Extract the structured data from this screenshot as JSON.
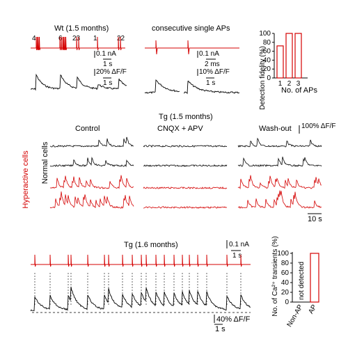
{
  "colors": {
    "ephys": "#d40000",
    "normal_trace": "#000000",
    "hyperactive": "#d40000",
    "axis": "#000000"
  },
  "panel_a": {
    "title": "Wt (1.5 months)",
    "right_title": "consecutive single APs",
    "spike_counts": [
      "4",
      "6",
      "23",
      "1",
      "22"
    ],
    "scalebar_current": "0.1 nA",
    "scalebar_time_left": "1 s",
    "scalebar_df": "20% ΔF/F",
    "scalebar_time_left2": "1 s",
    "scalebar_current_right": "0.1 nA",
    "scalebar_time_right": "2 ms",
    "scalebar_df_right": "10% ΔF/F",
    "scalebar_time_right2": "1 s"
  },
  "panel_b": {
    "title": "Tg (1.5 months)",
    "conditions": [
      "Control",
      "CNQX + APV",
      "Wash-out"
    ],
    "group_normal": "Normal cells",
    "group_hyper": "Hyperactive cells",
    "scalebar_df": "100% ΔF/F",
    "scalebar_time": "10 s"
  },
  "panel_c": {
    "title": "Tg (1.6 months)",
    "scalebar_current": "0.1 nA",
    "scalebar_time_top": "1 s",
    "scalebar_df": "40% ΔF/F",
    "scalebar_time_bottom": "1 s"
  },
  "chart_data": [
    {
      "type": "bar",
      "ylabel": "Detection fidelity (%)",
      "xlabel": "No. of APs",
      "categories": [
        "1",
        "2",
        "3"
      ],
      "values": [
        72,
        100,
        100
      ],
      "yticks": [
        "0",
        "20",
        "40",
        "60",
        "80",
        "100"
      ],
      "ylim": [
        0,
        100
      ],
      "grid": false
    },
    {
      "type": "bar",
      "ylabel": "No. of Ca²⁺ transients (%)",
      "categories": [
        "Non-AP",
        "AP"
      ],
      "values": [
        0,
        100
      ],
      "bar_annotations": [
        "not detected",
        ""
      ],
      "yticks": [
        "0",
        "20",
        "40",
        "60",
        "80",
        "100"
      ],
      "ylim": [
        0,
        100
      ],
      "grid": false
    }
  ]
}
